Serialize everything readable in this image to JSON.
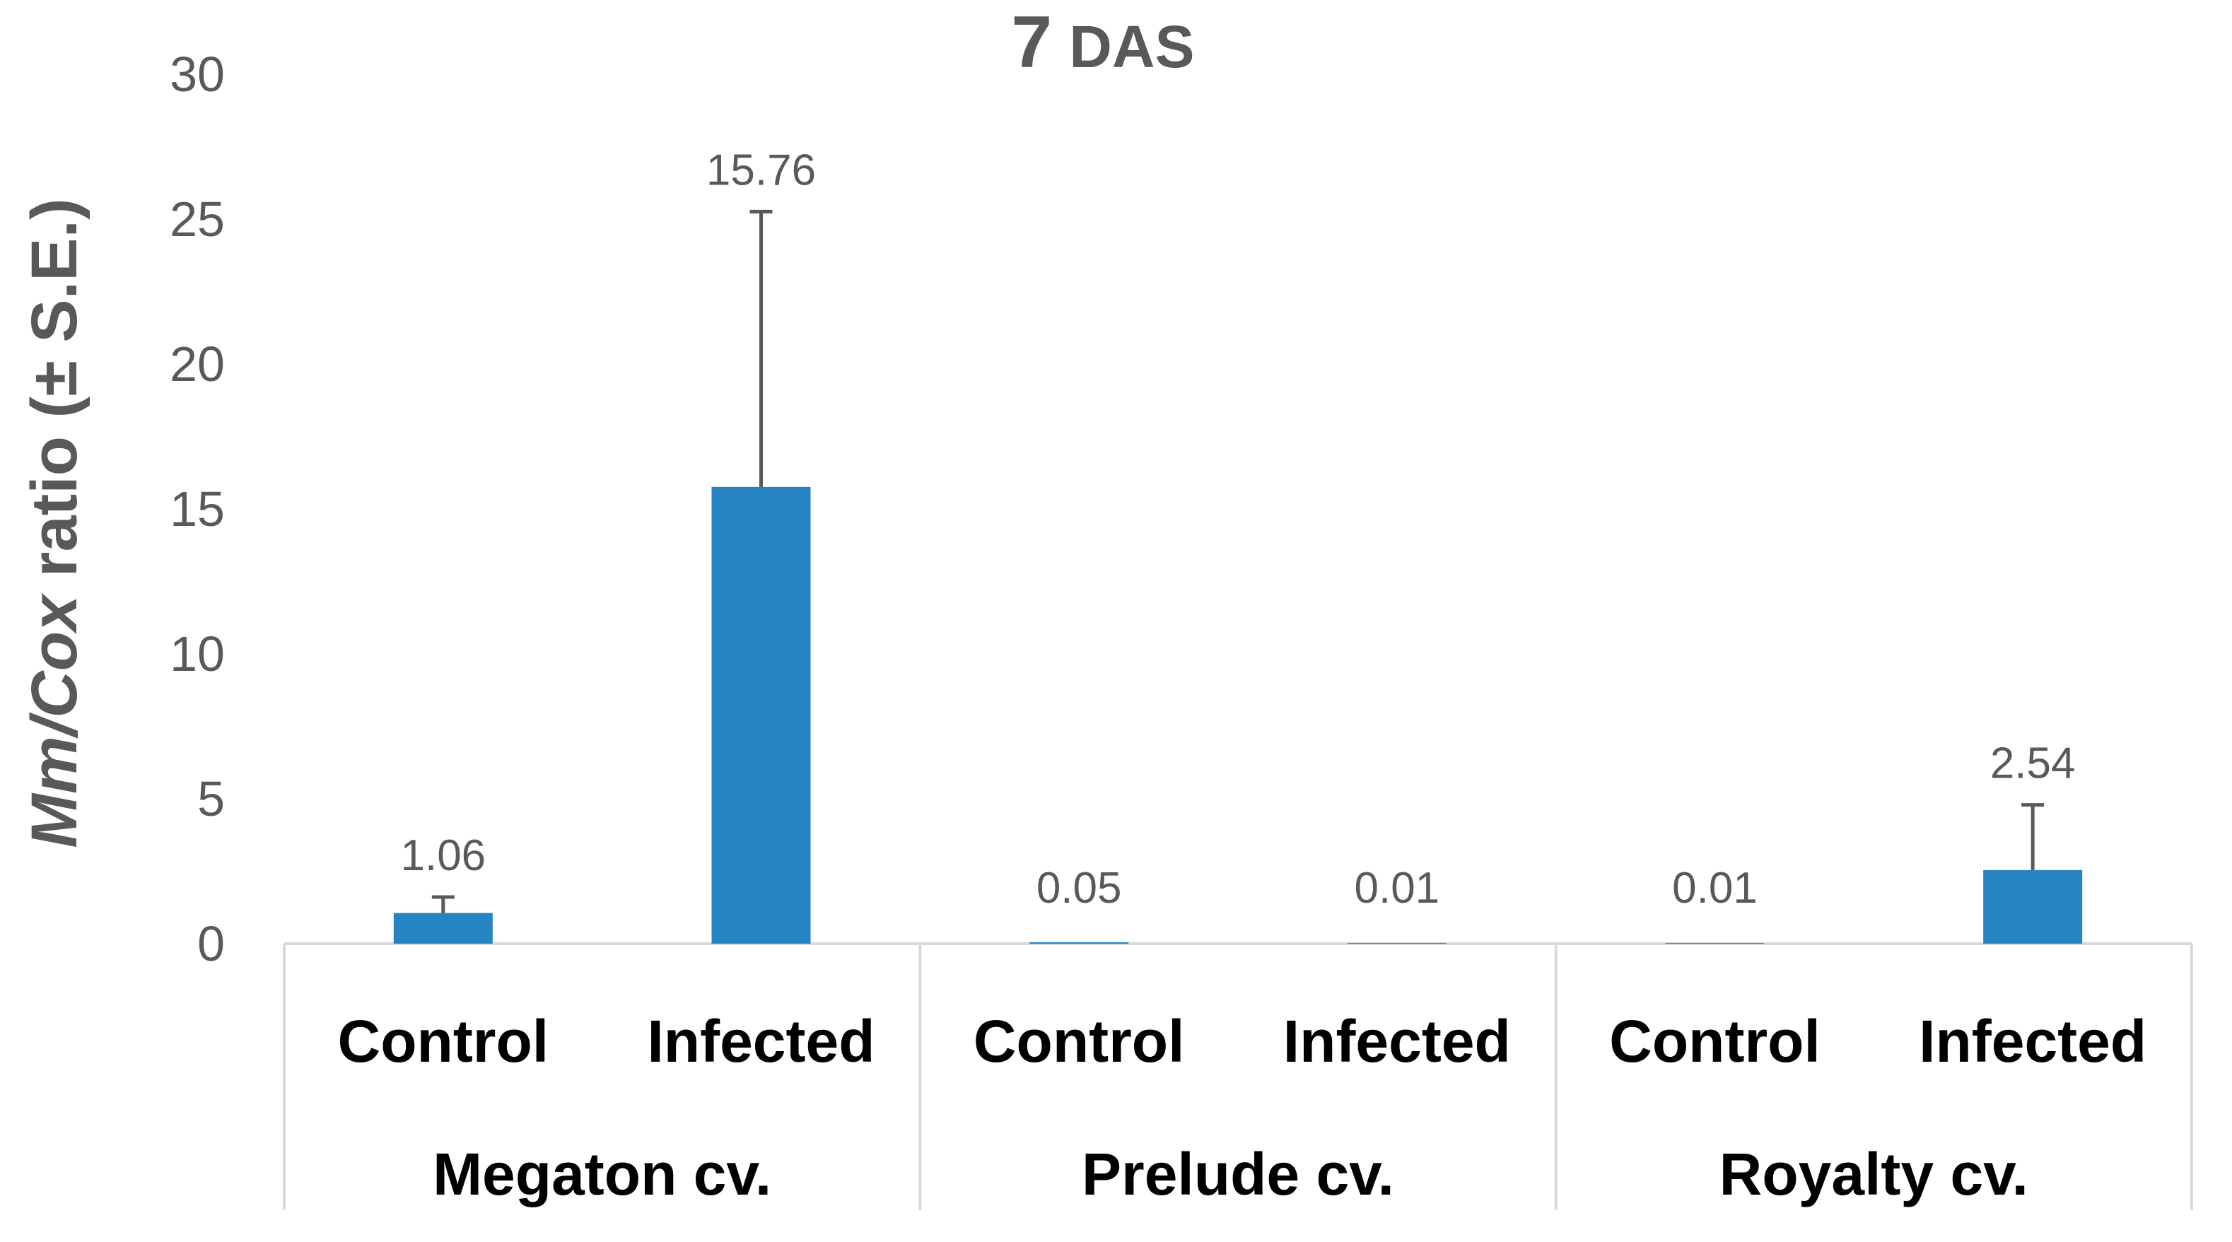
{
  "chart_data": {
    "type": "bar",
    "title": "7 DAS",
    "title_number": "7",
    "title_suffix": "DAS",
    "ylabel": "Mm/Cox ratio (± S.E.)",
    "ylabel_italic_part": "Mm/Cox",
    "ylabel_rest": " ratio (± S.E.)",
    "xlabel": "",
    "ylim": [
      0,
      30
    ],
    "yticks": [
      0,
      5,
      10,
      15,
      20,
      25,
      30
    ],
    "grid": false,
    "bar_color": "#2684C5",
    "groups": [
      "Megaton cv.",
      "Prelude cv.",
      "Royalty cv."
    ],
    "categories": [
      "Control",
      "Infected",
      "Control",
      "Infected",
      "Control",
      "Infected"
    ],
    "values": [
      1.06,
      15.76,
      0.05,
      0.01,
      0.01,
      2.54
    ],
    "errors": [
      0.55,
      9.5,
      0.0,
      0.0,
      0.0,
      2.25
    ],
    "data_labels": [
      "1.06",
      "15.76",
      "0.05",
      "0.01",
      "0.01",
      "2.54"
    ]
  }
}
